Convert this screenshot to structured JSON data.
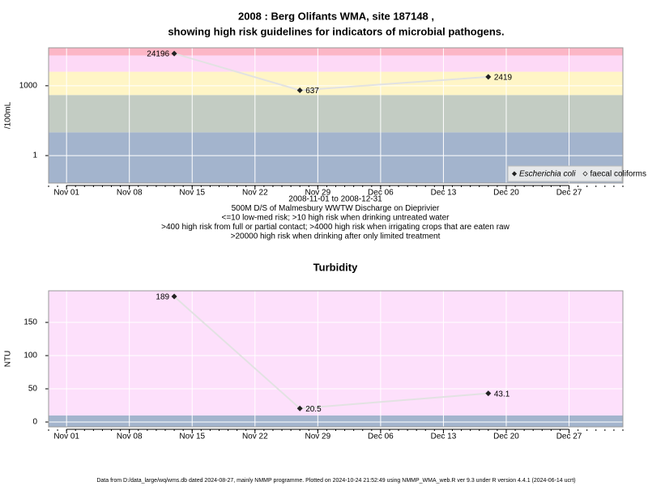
{
  "chart_data": [
    {
      "type": "line",
      "title": [
        "2008 : Berg Olifants WMA, site 187148 ,",
        "showing high risk guidelines for indicators of microbial pathogens."
      ],
      "ylabel": "/100mL",
      "log_y": true,
      "x": [
        "2008-11-13",
        "2008-11-27",
        "2008-12-18"
      ],
      "series": [
        {
          "name": "Escherichia coli",
          "color": "#222222",
          "values": [
            24196,
            637,
            2419
          ]
        },
        {
          "name": "faecal coliforms",
          "color": "#222222",
          "values": [
            null,
            null,
            null
          ]
        }
      ],
      "xlim": [
        "2008-10-30",
        "2009-01-02"
      ],
      "xticks": [
        {
          "value": "2008-11-01",
          "label": "Nov 01"
        },
        {
          "value": "2008-11-08",
          "label": "Nov 08"
        },
        {
          "value": "2008-11-15",
          "label": "Nov 15"
        },
        {
          "value": "2008-11-22",
          "label": "Nov 22"
        },
        {
          "value": "2008-11-29",
          "label": "Nov 29"
        },
        {
          "value": "2008-12-06",
          "label": "Dec 06"
        },
        {
          "value": "2008-12-13",
          "label": "Dec 13"
        },
        {
          "value": "2008-12-20",
          "label": "Dec 20"
        },
        {
          "value": "2008-12-27",
          "label": "Dec 27"
        }
      ],
      "ylim": [
        0.066,
        42700
      ],
      "yticks": [
        1,
        1000
      ],
      "band_breaks": [
        10,
        400,
        4000,
        20000
      ],
      "band_colors": [
        "#a3b4cd",
        "#c3ccc3",
        "#fff5c6",
        "#fdd9f6",
        "#fcb6c6"
      ],
      "grid": true,
      "legend": "bottom-right",
      "notes": [
        "2008-11-01 to 2008-12-31",
        "500M D/S of Malmesbury WWTW Discharge on Dieprivier",
        "<=10 low-med risk; >10 high risk when drinking untreated water",
        ">400 high risk from full or partial contact; >4000 high risk when irrigating crops that are eaten raw",
        ">20000 high risk when drinking after only limited treatment"
      ]
    },
    {
      "type": "line",
      "title": [
        "Turbidity"
      ],
      "ylabel": "NTU",
      "log_y": false,
      "x": [
        "2008-11-13",
        "2008-11-27",
        "2008-12-18"
      ],
      "series": [
        {
          "color": "#222222",
          "values": [
            189,
            20.5,
            43.1
          ]
        }
      ],
      "xlim": [
        "2008-10-30",
        "2009-01-02"
      ],
      "xticks": [
        {
          "value": "2008-11-01",
          "label": "Nov 01"
        },
        {
          "value": "2008-11-08",
          "label": "Nov 08"
        },
        {
          "value": "2008-11-15",
          "label": "Nov 15"
        },
        {
          "value": "2008-11-22",
          "label": "Nov 22"
        },
        {
          "value": "2008-11-29",
          "label": "Nov 29"
        },
        {
          "value": "2008-12-06",
          "label": "Dec 06"
        },
        {
          "value": "2008-12-13",
          "label": "Dec 13"
        },
        {
          "value": "2008-12-20",
          "label": "Dec 20"
        },
        {
          "value": "2008-12-27",
          "label": "Dec 27"
        }
      ],
      "ylim": [
        -7.3,
        197.6
      ],
      "yticks": [
        0,
        50,
        100,
        150
      ],
      "band_breaks": [
        10
      ],
      "band_colors": [
        "#a3b4cd",
        "#fde0fb"
      ],
      "grid": true
    }
  ],
  "footer": "Data from D:/data_large/wq/wms.db dated 2024-08-27, mainly NMMP programme. Plotted on 2024-10-24 21:52:49 using NMMP_WMA_web.R ver 9.3 under R version 4.4.1 (2024-06-14 ucrt)"
}
